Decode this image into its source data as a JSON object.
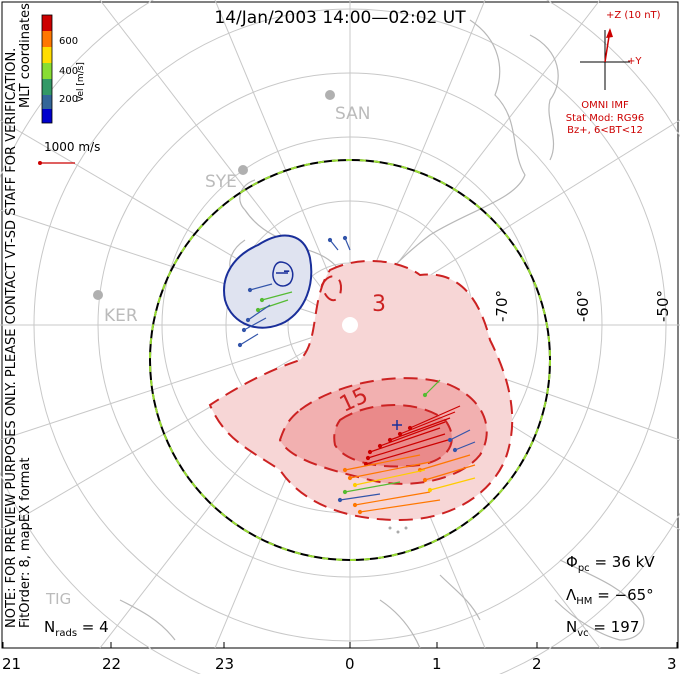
{
  "title": "14/Jan/2003 14:00—02:02 UT",
  "side_text_1": "NOTE: FOR PREVIEW PURPOSES ONLY. PLEASE CONTACT VT-SD STAFF FOR VERIFICATION.",
  "side_text_2": "FitOrder: 8, mapEX format",
  "mlt_label": "MLT coordinates",
  "colorbar": {
    "label": "Vel [m/s]",
    "ticks": [
      "600",
      "400",
      "200"
    ],
    "colors": [
      "#cc0000",
      "#ff7700",
      "#ffdd00",
      "#88dd33",
      "#339966",
      "#336699",
      "#0000cc"
    ]
  },
  "ref_vector": "1000 m/s",
  "imf": {
    "z_label": "+Z (10 nT)",
    "y_label": "+Y",
    "source": "OMNI IMF",
    "model": "Stat Mod: RG96",
    "condition": "Bz+, 6<BT<12"
  },
  "stations": [
    "SAN",
    "SYE",
    "KER",
    "TIG"
  ],
  "lat_labels": [
    "-70°",
    "-60°",
    "-50°"
  ],
  "contours": [
    "3",
    "15",
    "-"
  ],
  "mlt_ticks": [
    "21",
    "22",
    "23",
    "0",
    "1",
    "2",
    "3"
  ],
  "stats": {
    "phi_sym": "Φ",
    "phi_sub": "pc",
    "phi_val": " = 36 kV",
    "hm_sym": "Λ",
    "hm_sub": "HM",
    "hm_val": " = −65°",
    "nvc_sym": "N",
    "nvc_sub": "vc",
    "nvc_val": " = 197",
    "nrads_sym": "N",
    "nrads_sub": "rads",
    "nrads_val": " = 4"
  }
}
